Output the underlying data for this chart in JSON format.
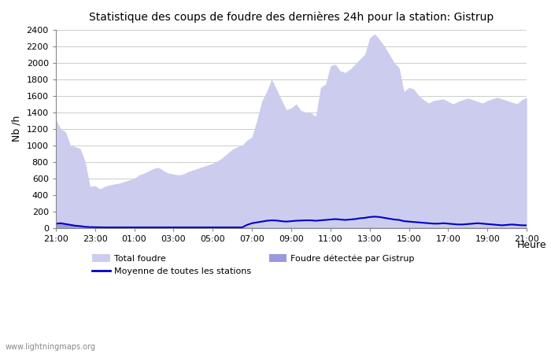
{
  "title": "Statistique des coups de foudre des dernières 24h pour la station: Gistrup",
  "xlabel": "Heure",
  "ylabel": "Nb /h",
  "watermark": "www.lightningmaps.org",
  "x_labels": [
    "21:00",
    "23:00",
    "01:00",
    "03:00",
    "05:00",
    "07:00",
    "09:00",
    "11:00",
    "13:00",
    "15:00",
    "17:00",
    "19:00",
    "21:00"
  ],
  "ylim": [
    0,
    2400
  ],
  "yticks": [
    0,
    200,
    400,
    600,
    800,
    1000,
    1200,
    1400,
    1600,
    1800,
    2000,
    2200,
    2400
  ],
  "color_total": "#ccccee",
  "color_gistrup": "#9999dd",
  "color_mean": "#0000cc",
  "legend_total": "Total foudre",
  "legend_gistrup": "Foudre détectée par Gistrup",
  "legend_mean": "Moyenne de toutes les stations",
  "total_foudre": [
    1310,
    1200,
    1160,
    1000,
    980,
    960,
    800,
    500,
    510,
    470,
    500,
    520,
    530,
    540,
    560,
    580,
    600,
    640,
    660,
    690,
    720,
    730,
    690,
    660,
    650,
    640,
    650,
    680,
    700,
    720,
    740,
    760,
    780,
    810,
    850,
    900,
    950,
    980,
    1000,
    1060,
    1100,
    1300,
    1530,
    1650,
    1800,
    1680,
    1550,
    1430,
    1450,
    1500,
    1420,
    1400,
    1390,
    1350,
    1700,
    1740,
    1960,
    1980,
    1900,
    1880,
    1920,
    1980,
    2040,
    2100,
    2300,
    2350,
    2280,
    2200,
    2100,
    2000,
    1940,
    1650,
    1700,
    1680,
    1600,
    1550,
    1510,
    1540,
    1550,
    1560,
    1530,
    1500,
    1530,
    1550,
    1570,
    1550,
    1530,
    1510,
    1540,
    1560,
    1580,
    1560,
    1540,
    1520,
    1500,
    1550,
    1580
  ],
  "gistrup": [
    50,
    60,
    50,
    40,
    30,
    20,
    10,
    5,
    5,
    5,
    5,
    5,
    5,
    5,
    5,
    5,
    5,
    5,
    5,
    5,
    5,
    5,
    5,
    5,
    5,
    5,
    5,
    5,
    5,
    5,
    5,
    5,
    5,
    5,
    5,
    5,
    5,
    5,
    5,
    5,
    5,
    5,
    5,
    5,
    5,
    5,
    5,
    5,
    5,
    5,
    5,
    5,
    5,
    5,
    5,
    5,
    5,
    5,
    5,
    5,
    5,
    5,
    5,
    5,
    5,
    5,
    5,
    5,
    5,
    5,
    5,
    5,
    5,
    5,
    5,
    5,
    5,
    5,
    5,
    5,
    5,
    5,
    5,
    5,
    5,
    5,
    5,
    5,
    5,
    5,
    5,
    5,
    5,
    5,
    5,
    5,
    5,
    5
  ],
  "mean_line": [
    50,
    55,
    45,
    35,
    25,
    20,
    12,
    8,
    7,
    6,
    5,
    5,
    5,
    5,
    5,
    5,
    5,
    5,
    5,
    5,
    5,
    5,
    5,
    5,
    5,
    5,
    5,
    5,
    5,
    5,
    5,
    5,
    5,
    5,
    5,
    5,
    5,
    5,
    5,
    35,
    55,
    65,
    75,
    85,
    90,
    88,
    80,
    75,
    80,
    85,
    88,
    90,
    90,
    85,
    90,
    95,
    100,
    105,
    100,
    95,
    100,
    105,
    115,
    120,
    130,
    135,
    130,
    120,
    110,
    100,
    95,
    80,
    75,
    70,
    65,
    60,
    55,
    50,
    50,
    55,
    50,
    45,
    40,
    40,
    45,
    50,
    55,
    50,
    45,
    40,
    35,
    30,
    35,
    40,
    35,
    30,
    30,
    35
  ]
}
